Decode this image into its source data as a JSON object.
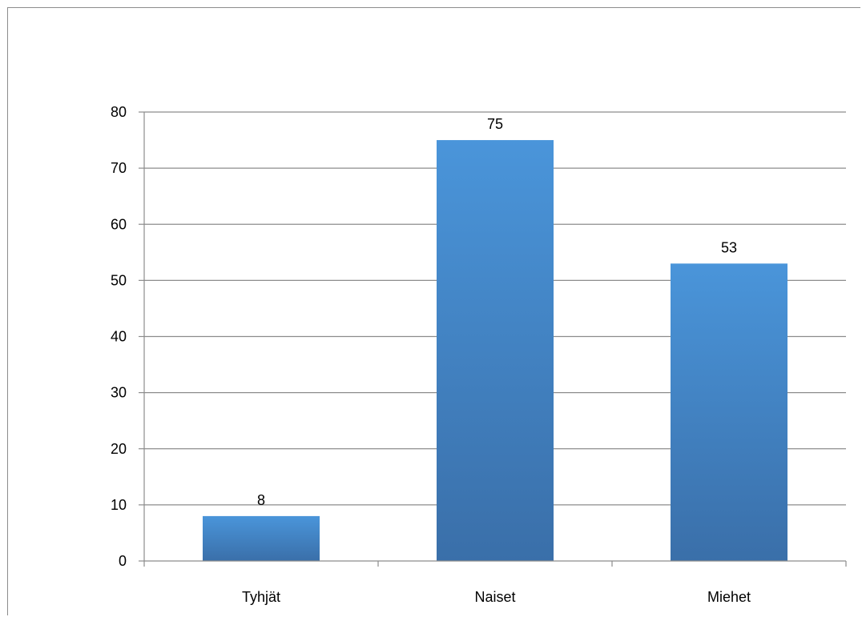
{
  "chart_data": {
    "type": "bar",
    "categories": [
      "Tyhjät",
      "Naiset",
      "Miehet"
    ],
    "values": [
      8,
      75,
      53
    ],
    "title": "",
    "xlabel": "",
    "ylabel": "",
    "ylim": [
      0,
      80
    ],
    "yticks": [
      0,
      10,
      20,
      30,
      40,
      50,
      60,
      70,
      80
    ],
    "grid": true,
    "legend": "none",
    "data_labels": true,
    "colors": {
      "bar_top": "#4a95da",
      "bar_bottom": "#3a6fa9",
      "grid": "#8c8c8c",
      "axis": "#8c8c8c"
    }
  }
}
